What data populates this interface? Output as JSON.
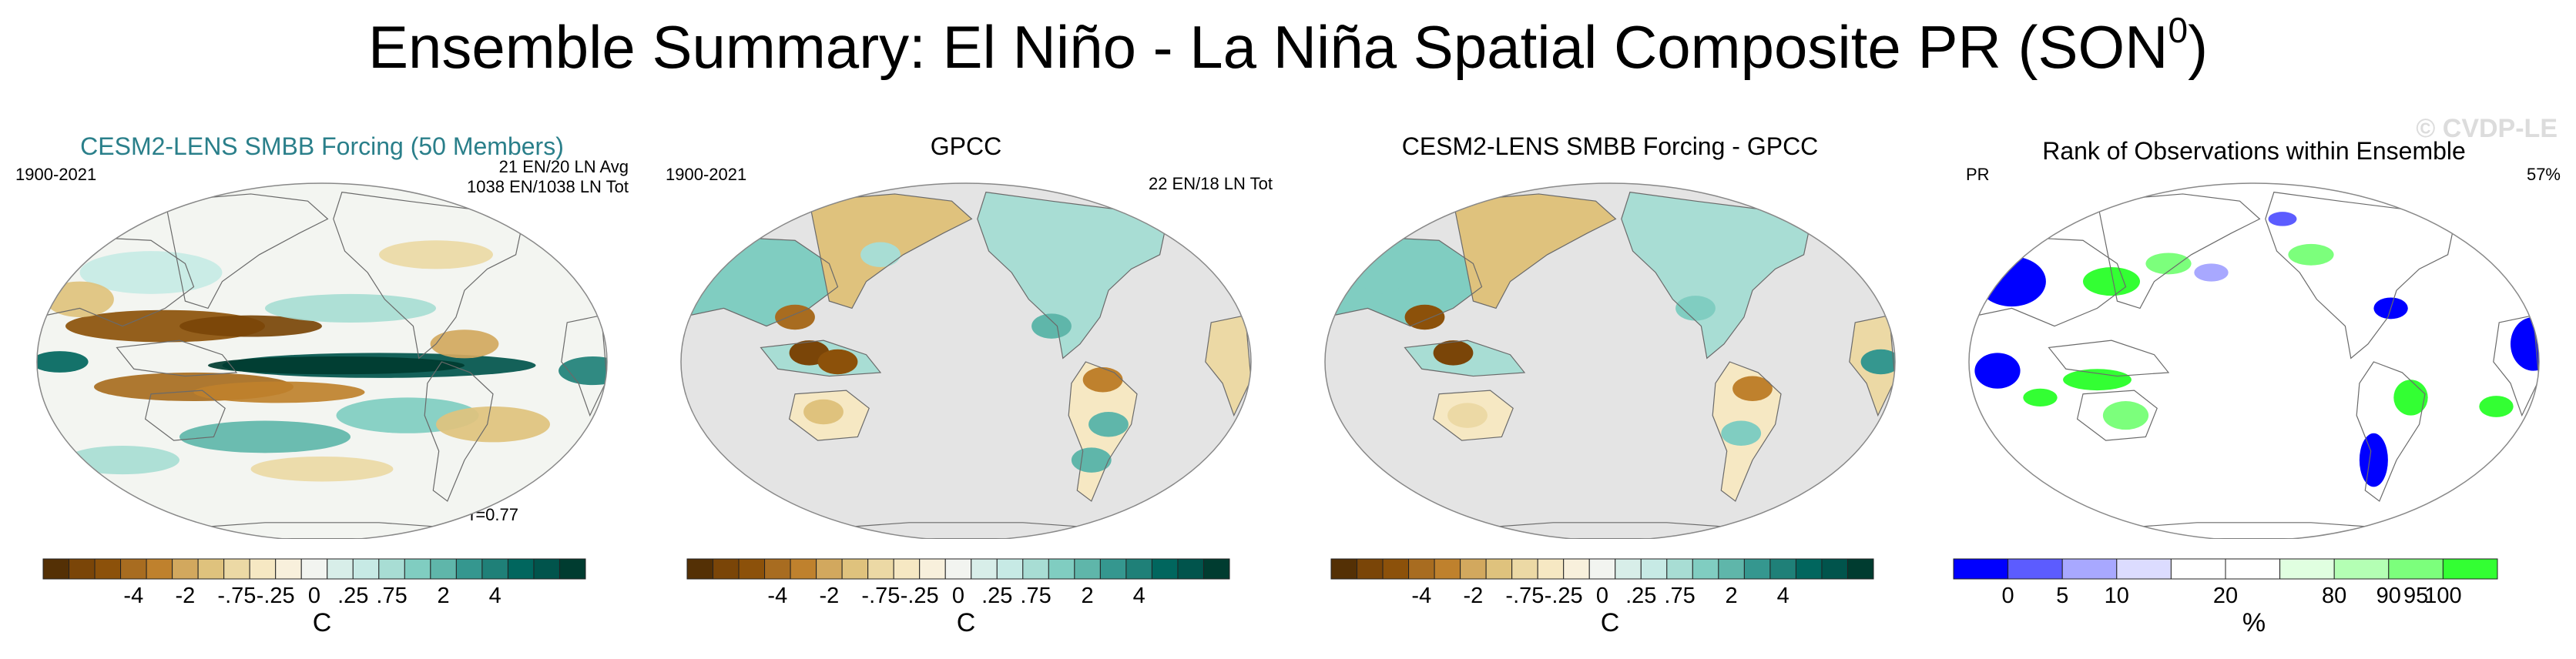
{
  "page": {
    "title": "Ensemble Summary: El Niño - La Niña Spatial Composite PR (SON",
    "title_sup": "0",
    "title_end": ")",
    "watermark": "© CVDP-LE"
  },
  "colors": {
    "ocean_bg": "#e4e4e4",
    "land_line": "#6a6a6a",
    "brown_scale": [
      "#543005",
      "#7a4508",
      "#8c510a",
      "#a86c20",
      "#bf812d",
      "#d2a85e",
      "#dfc27d",
      "#ecd9a5",
      "#f6e8c3",
      "#f8f0dc",
      "#f2f4f0",
      "#d8eee9",
      "#c7eae5",
      "#a8ddd4",
      "#80cdc1",
      "#5fb6aa",
      "#35978f",
      "#1f8078",
      "#01665e",
      "#01544c",
      "#003c30"
    ],
    "rank_scale": [
      "#0000ff",
      "#5c5cff",
      "#a8a8ff",
      "#dcdcff",
      "#ffffff",
      "#ffffff",
      "#e0ffe0",
      "#b4ffb4",
      "#7cff7c",
      "#33ff33"
    ],
    "title_accent": "#2a7f8a"
  },
  "panels": [
    {
      "title": "CESM2-LENS SMBB Forcing (50 Members)",
      "left_label": "1900-2021",
      "right_label_1": "21 EN/20 LN Avg",
      "right_label_2": "1038 EN/1038 LN Tot",
      "bottom_label": "r=0.77",
      "colorbar_ticks": [
        "-4",
        "-2",
        "-.75",
        "-.25",
        "0",
        ".25",
        ".75",
        "2",
        "4"
      ],
      "units": "C"
    },
    {
      "title": "GPCC",
      "left_label": "1900-2021",
      "right_label_1": "22 EN/18 LN Tot",
      "colorbar_ticks": [
        "-4",
        "-2",
        "-.75",
        "-.25",
        "0",
        ".25",
        ".75",
        "2",
        "4"
      ],
      "units": "C"
    },
    {
      "title": "CESM2-LENS SMBB Forcing - GPCC",
      "colorbar_ticks": [
        "-4",
        "-2",
        "-.75",
        "-.25",
        "0",
        ".25",
        ".75",
        "2",
        "4"
      ],
      "units": "C"
    },
    {
      "title": "Rank of Observations within Ensemble",
      "left_label": "PR",
      "right_label_1": "57%",
      "colorbar_ticks": [
        "0",
        "5",
        "10",
        "20",
        "80",
        "90",
        "95",
        "100"
      ],
      "units": "%"
    }
  ]
}
